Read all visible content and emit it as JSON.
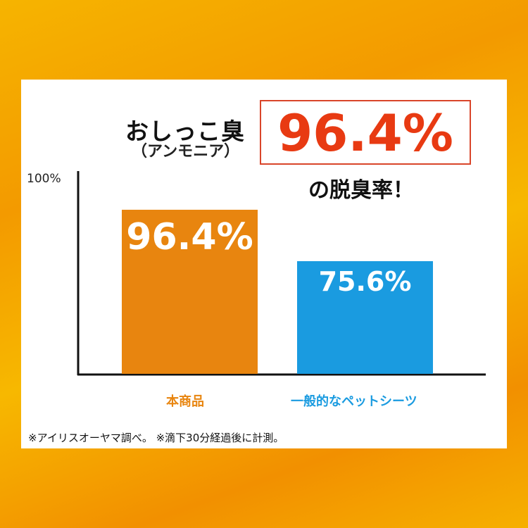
{
  "headline": {
    "line1": "おしっこ臭",
    "line2": "（アンモニア）",
    "highlight": "96.4%",
    "line3": "の脱臭率！"
  },
  "colors": {
    "accent": "#e83a12",
    "product": "#e8850f",
    "generic": "#1a9be0"
  },
  "chart_data": {
    "type": "bar",
    "categories": [
      "本商品",
      "一般的なペットシーツ"
    ],
    "values": [
      96.4,
      75.6
    ],
    "data_labels": [
      "96.4%",
      "75.6%"
    ],
    "y_tick_labels": [
      "100%"
    ],
    "ylim": [
      30,
      100
    ],
    "grid": false
  },
  "footnote": "※アイリスオーヤマ調べ。 ※滴下30分経過後に計測。"
}
